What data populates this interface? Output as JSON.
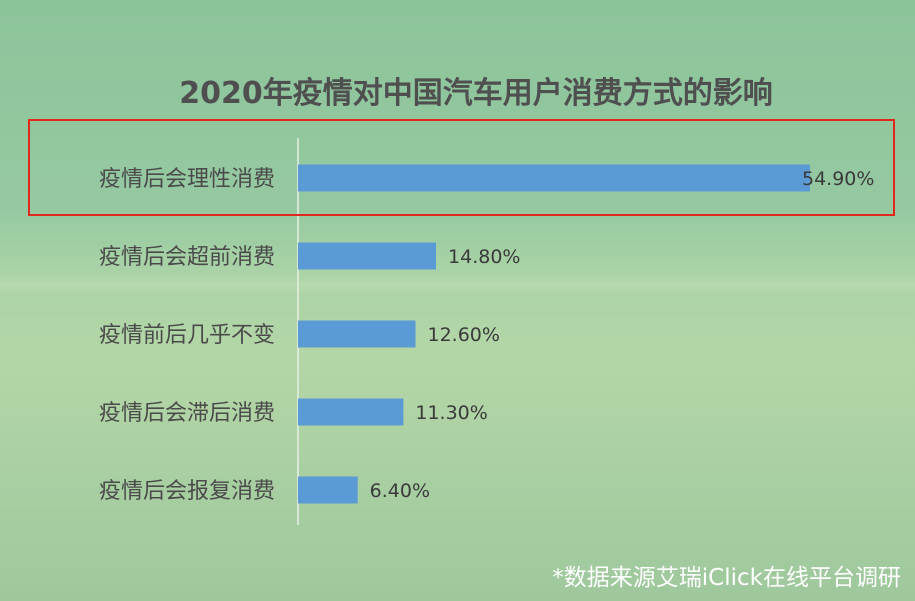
{
  "chart_data": {
    "type": "bar",
    "orientation": "horizontal",
    "title": "2020年疫情对中国汽车用户消费方式的影响",
    "categories": [
      "疫情后会理性消费",
      "疫情后会超前消费",
      "疫情前后几乎不变",
      "疫情后会滞后消费",
      "疫情后会报复消费"
    ],
    "values": [
      54.9,
      14.8,
      12.6,
      11.3,
      6.4
    ],
    "value_labels": [
      "54.90%",
      "14.80%",
      "12.60%",
      "11.30%",
      "6.40%"
    ],
    "xlim": [
      0,
      60
    ],
    "grid": false,
    "bar_color": "#5b9bd5",
    "highlight_color": "#e0281f",
    "highlighted_category": "疫情后会理性消费"
  },
  "source_note": "*数据来源艾瑞iClick在线平台调研"
}
